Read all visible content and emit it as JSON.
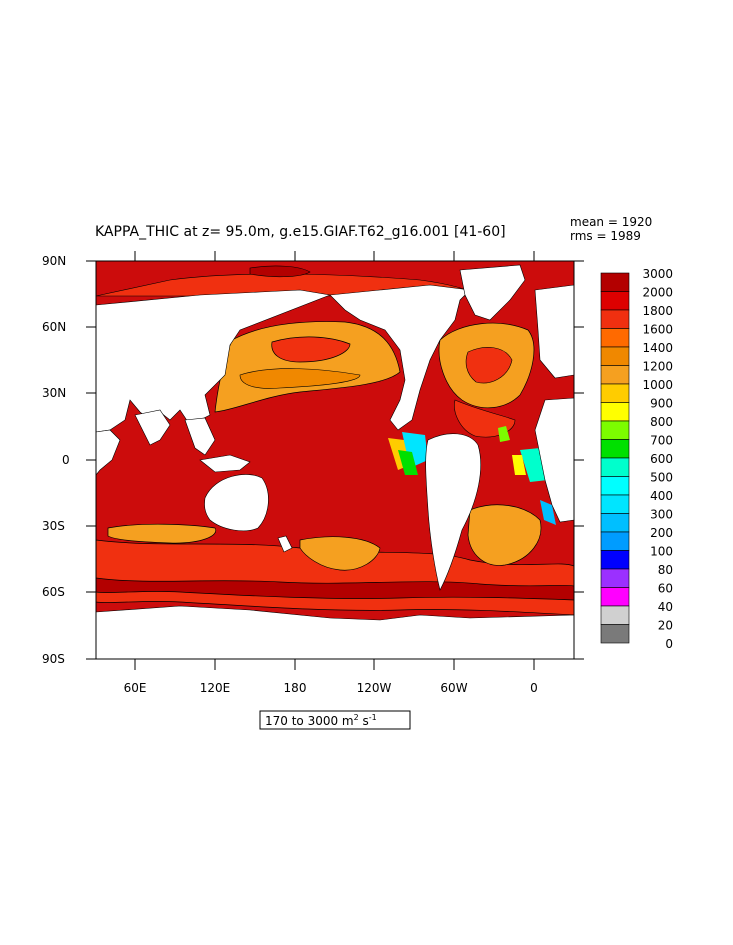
{
  "plot": {
    "title": "KAPPA_THIC at z=  95.0m, g.e15.GIAF.T62_g16.001 [41-60]",
    "stats": {
      "mean_label": "mean = 1920",
      "rms_label": "rms = 1989"
    },
    "range_box": {
      "text": "170 to 3000 m",
      "unit_sup": "2",
      "unit_tail": " s",
      "unit_tail_sup": "-1"
    }
  },
  "axes": {
    "y_ticks": [
      "90N",
      "60N",
      "30N",
      "0",
      "30S",
      "60S",
      "90S"
    ],
    "x_ticks": [
      "60E",
      "120E",
      "180",
      "120W",
      "60W",
      "0"
    ]
  },
  "legend": {
    "labels": [
      "3000",
      "2000",
      "1800",
      "1600",
      "1400",
      "1200",
      "1000",
      "900",
      "800",
      "700",
      "600",
      "500",
      "400",
      "300",
      "200",
      "100",
      "80",
      "60",
      "40",
      "20",
      "0"
    ],
    "colors": [
      "#b30000",
      "#dd0000",
      "#f03010",
      "#ff6a00",
      "#f08800",
      "#f5a020",
      "#ffcc00",
      "#ffff00",
      "#7cfc00",
      "#00e000",
      "#00ffcc",
      "#00ffff",
      "#00e5ff",
      "#00bfff",
      "#009cff",
      "#0000ff",
      "#9b30ff",
      "#ff00ff",
      "#d0d0d0",
      "#7a7a7a"
    ]
  },
  "colors": {
    "land": "#ffffff",
    "ocean_base": "#cc0c0c",
    "deep_red": "#b30000",
    "red": "#dd0000",
    "orange_red": "#f03010",
    "orange": "#f08800",
    "light_orange": "#f5a020"
  }
}
